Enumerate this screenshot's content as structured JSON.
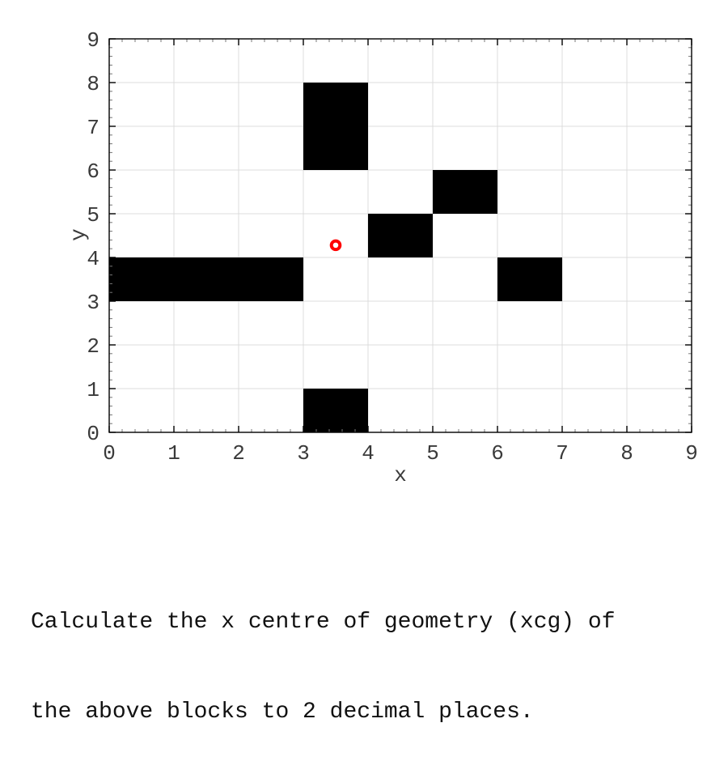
{
  "chart_data": {
    "type": "heatmap",
    "description": "Binary occupancy plot of unit-aligned black blocks on a 9x9 grid with a red open-circle marker at the centre of geometry",
    "xlabel": "x",
    "ylabel": "y",
    "xlim": [
      0,
      9
    ],
    "ylim": [
      0,
      9
    ],
    "xticks": [
      0,
      1,
      2,
      3,
      4,
      5,
      6,
      7,
      8,
      9
    ],
    "yticks": [
      0,
      1,
      2,
      3,
      4,
      5,
      6,
      7,
      8,
      9
    ],
    "minor_tick_step": 0.2,
    "grid": true,
    "legend": "none",
    "blocks": [
      {
        "x": 3,
        "y": 6,
        "w": 1,
        "h": 2
      },
      {
        "x": 5,
        "y": 5,
        "w": 1,
        "h": 1
      },
      {
        "x": 4,
        "y": 4,
        "w": 1,
        "h": 1
      },
      {
        "x": 0,
        "y": 3,
        "w": 3,
        "h": 1
      },
      {
        "x": 6,
        "y": 3,
        "w": 1,
        "h": 1
      },
      {
        "x": 3,
        "y": 0,
        "w": 1,
        "h": 1
      }
    ],
    "marker": {
      "x": 3.5,
      "y": 4.28,
      "shape": "open-circle"
    },
    "colors": {
      "block": "#000000",
      "marker": "#ff0000",
      "grid": "#dcdcdc",
      "spine": "#000000",
      "major_tick": "#000000",
      "minor_tick": "#777777",
      "tick_label": "#3a3a3a",
      "background": "#ffffff"
    }
  },
  "question": {
    "lines": [
      "Calculate the x centre of geometry (xcg) of",
      "the above blocks to 2 decimal places."
    ]
  }
}
